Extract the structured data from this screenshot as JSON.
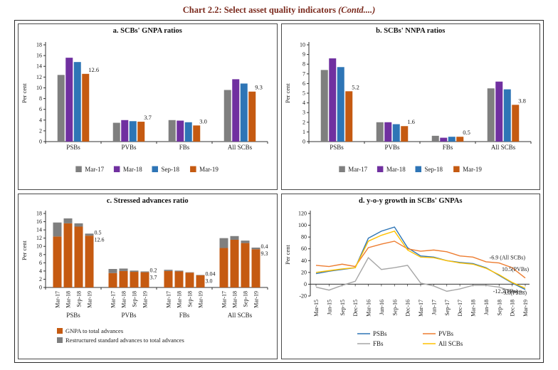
{
  "header": {
    "title": "Chart 2.2: Select asset quality indicators",
    "contd": "(Contd....)",
    "title_color": "#7b2a1d"
  },
  "chart_data": [
    {
      "type": "bar",
      "title": "a. SCBs' GNPA ratios",
      "ylabel": "Per cent",
      "ylim": [
        0,
        18
      ],
      "ystep": 2,
      "grid": false,
      "legend_position": "bottom",
      "categories": [
        "PSBs",
        "PVBs",
        "FBs",
        "All SCBs"
      ],
      "series": [
        {
          "name": "Mar-17",
          "color": "#7f7f7f",
          "values": [
            12.4,
            3.5,
            4.0,
            9.6
          ]
        },
        {
          "name": "Mar-18",
          "color": "#7030a0",
          "values": [
            15.6,
            4.0,
            3.9,
            11.6
          ]
        },
        {
          "name": "Sep-18",
          "color": "#2e75b6",
          "values": [
            14.8,
            3.8,
            3.6,
            10.8
          ]
        },
        {
          "name": "Mar-19",
          "color": "#c55a11",
          "values": [
            12.6,
            3.7,
            3.0,
            9.3
          ]
        }
      ],
      "data_labels": [
        "12.6",
        "3.7",
        "3.0",
        "9.3"
      ]
    },
    {
      "type": "bar",
      "title": "b. SCBs' NNPA ratios",
      "ylabel": "Per cent",
      "ylim": [
        0,
        10
      ],
      "ystep": 1,
      "grid": false,
      "legend_position": "bottom",
      "categories": [
        "PSBs",
        "PVBs",
        "FBs",
        "All SCBs"
      ],
      "series": [
        {
          "name": "Mar-17",
          "color": "#7f7f7f",
          "values": [
            7.4,
            2.0,
            0.6,
            5.5
          ]
        },
        {
          "name": "Mar-18",
          "color": "#7030a0",
          "values": [
            8.6,
            2.0,
            0.4,
            6.2
          ]
        },
        {
          "name": "Sep-18",
          "color": "#2e75b6",
          "values": [
            7.7,
            1.8,
            0.5,
            5.4
          ]
        },
        {
          "name": "Mar-19",
          "color": "#c55a11",
          "values": [
            5.2,
            1.6,
            0.5,
            3.8
          ]
        }
      ],
      "data_labels": [
        "5.2",
        "1.6",
        "0.5",
        "3.8"
      ]
    },
    {
      "type": "stacked_bar",
      "title": "c. Stressed advances ratio",
      "ylabel": "Per cent",
      "ylim": [
        0,
        18
      ],
      "ystep": 2,
      "grid": false,
      "legend_position": "bottom-left",
      "groups": [
        "PSBs",
        "PVBs",
        "FBs",
        "All SCBs"
      ],
      "bar_categories": [
        "Mar-17",
        "Mar-18",
        "Sep-18",
        "Mar-19"
      ],
      "series": [
        {
          "name": "GNPA to total advances",
          "color": "#c55a11",
          "values": [
            [
              12.4,
              15.6,
              14.8,
              12.6
            ],
            [
              3.5,
              4.0,
              3.8,
              3.7
            ],
            [
              4.0,
              3.9,
              3.6,
              3.0
            ],
            [
              9.6,
              11.6,
              10.8,
              9.3
            ]
          ]
        },
        {
          "name": "Restructured standard advances to total advances",
          "color": "#7f7f7f",
          "values": [
            [
              3.4,
              1.2,
              0.8,
              0.5
            ],
            [
              1.0,
              0.6,
              0.3,
              0.2
            ],
            [
              0.3,
              0.2,
              0.1,
              0.04
            ],
            [
              2.4,
              0.9,
              0.6,
              0.4
            ]
          ]
        }
      ],
      "data_labels": [
        {
          "top": "0.5",
          "bottom": "12.6"
        },
        {
          "top": "0.2",
          "bottom": "3.7"
        },
        {
          "top": "0.04",
          "bottom": "3.0"
        },
        {
          "top": "0.4",
          "bottom": "9.3"
        }
      ]
    },
    {
      "type": "line",
      "title": "d. y-o-y growth in SCBs' GNPAs",
      "ylabel": "Per cent",
      "ylim": [
        -20,
        120
      ],
      "ystep": 20,
      "grid": false,
      "legend_position": "bottom",
      "x": [
        "Mar-15",
        "Jun-15",
        "Sep-15",
        "Dec-15",
        "Mar-16",
        "Jun-16",
        "Sep-16",
        "Dec-16",
        "Mar-17",
        "Jun-17",
        "Sep-17",
        "Dec-17",
        "Mar-18",
        "Jun-18",
        "Sep-18",
        "Dec-18",
        "Mar-19"
      ],
      "series": [
        {
          "name": "PSBs",
          "color": "#2e75b6",
          "values": [
            18,
            22,
            25,
            28,
            78,
            90,
            97,
            62,
            48,
            46,
            40,
            37,
            35,
            28,
            15,
            2,
            -9.0
          ]
        },
        {
          "name": "PVBs",
          "color": "#ed7d31",
          "values": [
            32,
            30,
            34,
            30,
            62,
            68,
            73,
            60,
            56,
            58,
            55,
            48,
            46,
            38,
            36,
            28,
            10.5
          ]
        },
        {
          "name": "FBs",
          "color": "#a6a6a6",
          "values": [
            -5,
            -10,
            -2,
            5,
            45,
            25,
            28,
            32,
            2,
            -3,
            -12,
            -8,
            -2,
            -2,
            -5,
            -12,
            -12.7
          ]
        },
        {
          "name": "All SCBs",
          "color": "#ffc000",
          "values": [
            20,
            23,
            26,
            28,
            73,
            83,
            90,
            58,
            46,
            45,
            40,
            36,
            34,
            27,
            16,
            3,
            -6.9
          ]
        }
      ],
      "annotations": [
        {
          "text": "-6.9 (All SCBs)",
          "x": 16,
          "y": 42,
          "anchor": "end"
        },
        {
          "text": "10.5(PVBs)",
          "x": 16,
          "y": 22,
          "anchor": "end",
          "dx": 5
        },
        {
          "text": "-12.7(FBs)",
          "x": 15,
          "y": -15,
          "anchor": "end",
          "dx": 8
        },
        {
          "text": "-9.0(PSBs)",
          "x": 16,
          "y": -17.5,
          "anchor": "end",
          "dx": 2
        }
      ]
    }
  ]
}
